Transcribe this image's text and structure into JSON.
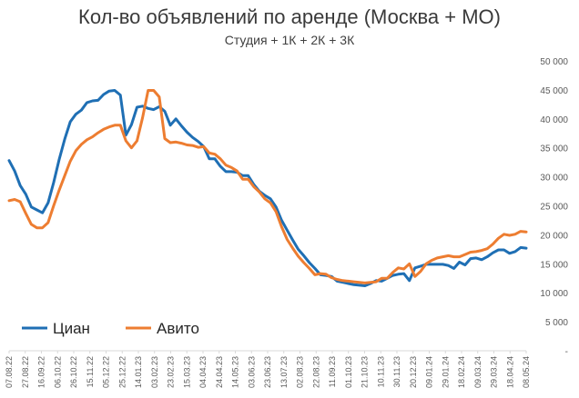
{
  "chart_data": {
    "type": "line",
    "title": "Кол-во объявлений по аренде (Москва + МО)",
    "subtitle": "Студия + 1К + 2К + 3К",
    "xlabel": "",
    "ylabel": "",
    "ylim": [
      0,
      50000
    ],
    "y_ticks": [
      0,
      5000,
      10000,
      15000,
      20000,
      25000,
      30000,
      35000,
      40000,
      45000,
      50000
    ],
    "y_tick_labels": [
      "-",
      "5 000",
      "10 000",
      "15 000",
      "20 000",
      "25 000",
      "30 000",
      "35 000",
      "40 000",
      "45 000",
      "50 000"
    ],
    "y_axis_position": "right",
    "x_tick_labels": [
      "07.08.22",
      "27.08.22",
      "16.09.22",
      "06.10.22",
      "26.10.22",
      "15.11.22",
      "05.12.22",
      "25.12.22",
      "14.01.23",
      "03.02.23",
      "23.02.23",
      "15.03.23",
      "04.04.23",
      "24.04.23",
      "14.05.23",
      "03.06.23",
      "23.06.23",
      "13.07.23",
      "02.08.23",
      "22.08.23",
      "11.09.23",
      "01.10.23",
      "21.10.23",
      "10.11.23",
      "30.11.23",
      "20.12.23",
      "09.01.24",
      "29.01.24",
      "18.02.24",
      "09.03.24",
      "29.03.24",
      "18.04.24",
      "08.05.24"
    ],
    "grid": false,
    "legend": "bottom-left",
    "series": [
      {
        "name": "Циан",
        "color": "#1f6fb4",
        "values": [
          32800,
          31000,
          28500,
          27000,
          24800,
          24300,
          23800,
          25500,
          29000,
          33000,
          36500,
          39500,
          40800,
          41500,
          42800,
          43100,
          43200,
          44200,
          44800,
          44900,
          44100,
          37200,
          39000,
          42000,
          42200,
          41800,
          41600,
          42100,
          41300,
          38900,
          40000,
          38800,
          37700,
          36800,
          36100,
          35200,
          33100,
          33100,
          31800,
          30900,
          30900,
          30800,
          30200,
          30200,
          28700,
          27500,
          26800,
          26200,
          24800,
          22500,
          20800,
          19100,
          17500,
          16400,
          15200,
          14200,
          13100,
          13000,
          12800,
          12000,
          11800,
          11600,
          11400,
          11300,
          11200,
          11600,
          12100,
          12000,
          12500,
          13000,
          13200,
          13300,
          12100,
          14300,
          14600,
          14900,
          14900,
          14900,
          14900,
          14700,
          14200,
          15300,
          14800,
          15900,
          16000,
          15700,
          16200,
          16900,
          17400,
          17400,
          16800,
          17100,
          17800,
          17700
        ]
      },
      {
        "name": "Авито",
        "color": "#ed7d31",
        "values": [
          25900,
          26100,
          25700,
          23700,
          21800,
          21200,
          21200,
          22100,
          25000,
          27700,
          30200,
          32700,
          34500,
          35600,
          36400,
          36900,
          37600,
          38200,
          38600,
          38900,
          38900,
          36200,
          35000,
          36200,
          40200,
          44900,
          44900,
          43800,
          36600,
          35900,
          36000,
          35800,
          35500,
          35400,
          35100,
          35200,
          34100,
          33900,
          33100,
          32000,
          31600,
          31000,
          29600,
          29600,
          28300,
          27400,
          26200,
          25500,
          24000,
          21400,
          19200,
          17700,
          16300,
          15200,
          14200,
          13100,
          13300,
          13200,
          12600,
          12300,
          12100,
          12000,
          11900,
          11800,
          11700,
          11800,
          11900,
          12500,
          12500,
          13500,
          14300,
          14100,
          15000,
          12800,
          13700,
          15000,
          15600,
          16000,
          16200,
          16400,
          16200,
          16200,
          16600,
          17000,
          17100,
          17300,
          17600,
          18400,
          19400,
          20100,
          19900,
          20100,
          20600,
          20500
        ]
      }
    ]
  }
}
